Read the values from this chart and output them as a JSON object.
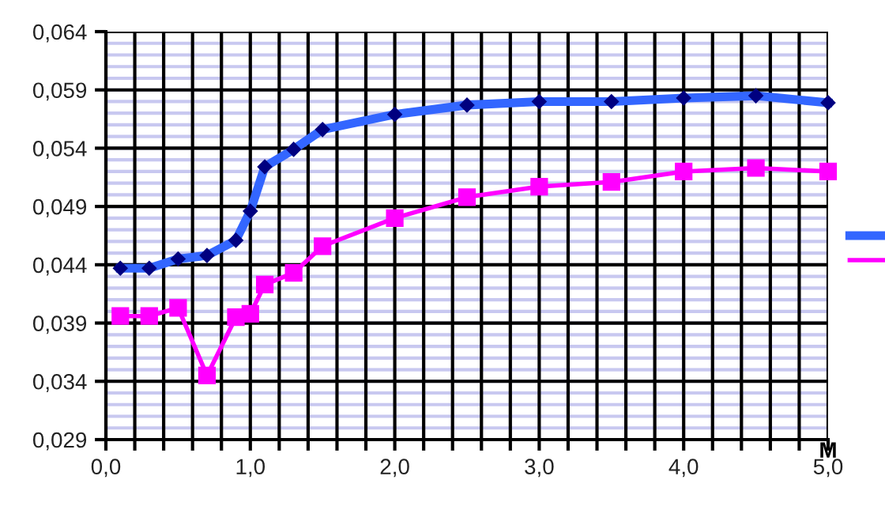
{
  "chart_data": {
    "type": "line",
    "xlabel": "M",
    "x": [
      0.1,
      0.3,
      0.5,
      0.7,
      0.9,
      1.0,
      1.1,
      1.3,
      1.5,
      2.0,
      2.5,
      3.0,
      3.5,
      4.0,
      4.5,
      5.0
    ],
    "series": [
      {
        "color": "#3366ff",
        "marker": "diamond",
        "values": [
          0.0437,
          0.0437,
          0.0445,
          0.0448,
          0.0461,
          0.0486,
          0.0524,
          0.0539,
          0.0556,
          0.0569,
          0.0577,
          0.058,
          0.058,
          0.0583,
          0.0585,
          0.0579
        ]
      },
      {
        "color": "#ff00ff",
        "marker": "square",
        "values": [
          0.0396,
          0.0396,
          0.0403,
          0.0345,
          0.0395,
          0.0398,
          0.0423,
          0.0433,
          0.0456,
          0.048,
          0.0498,
          0.0507,
          0.0511,
          0.052,
          0.0523,
          0.052
        ]
      }
    ],
    "xlim": [
      0,
      5
    ],
    "ylim": [
      0.029,
      0.064
    ],
    "xticks": [
      {
        "value": 0,
        "label": "0,0"
      },
      {
        "value": 0.2,
        "label": null
      },
      {
        "value": 0.4,
        "label": null
      },
      {
        "value": 0.6,
        "label": null
      },
      {
        "value": 0.8,
        "label": null
      },
      {
        "value": 1,
        "label": "1,0"
      },
      {
        "value": 1.2,
        "label": null
      },
      {
        "value": 1.4,
        "label": null
      },
      {
        "value": 1.6,
        "label": null
      },
      {
        "value": 1.8,
        "label": null
      },
      {
        "value": 2,
        "label": "2,0"
      },
      {
        "value": 2.2,
        "label": null
      },
      {
        "value": 2.4,
        "label": null
      },
      {
        "value": 2.6,
        "label": null
      },
      {
        "value": 2.8,
        "label": null
      },
      {
        "value": 3,
        "label": "3,0"
      },
      {
        "value": 3.2,
        "label": null
      },
      {
        "value": 3.4,
        "label": null
      },
      {
        "value": 3.6,
        "label": null
      },
      {
        "value": 3.8,
        "label": null
      },
      {
        "value": 4,
        "label": "4,0"
      },
      {
        "value": 4.2,
        "label": null
      },
      {
        "value": 4.4,
        "label": null
      },
      {
        "value": 4.6,
        "label": null
      },
      {
        "value": 4.8,
        "label": null
      },
      {
        "value": 5,
        "label": "5,0"
      }
    ],
    "yticks": [
      {
        "value": 0.029,
        "label": "0,029"
      },
      {
        "value": 0.034,
        "label": "0,034"
      },
      {
        "value": 0.039,
        "label": "0,039"
      },
      {
        "value": 0.044,
        "label": "0,044"
      },
      {
        "value": 0.049,
        "label": "0,049"
      },
      {
        "value": 0.054,
        "label": "0,054"
      },
      {
        "value": 0.059,
        "label": "0,059"
      },
      {
        "value": 0.064,
        "label": "0,064"
      }
    ],
    "grid": true,
    "line_style": "solid"
  }
}
